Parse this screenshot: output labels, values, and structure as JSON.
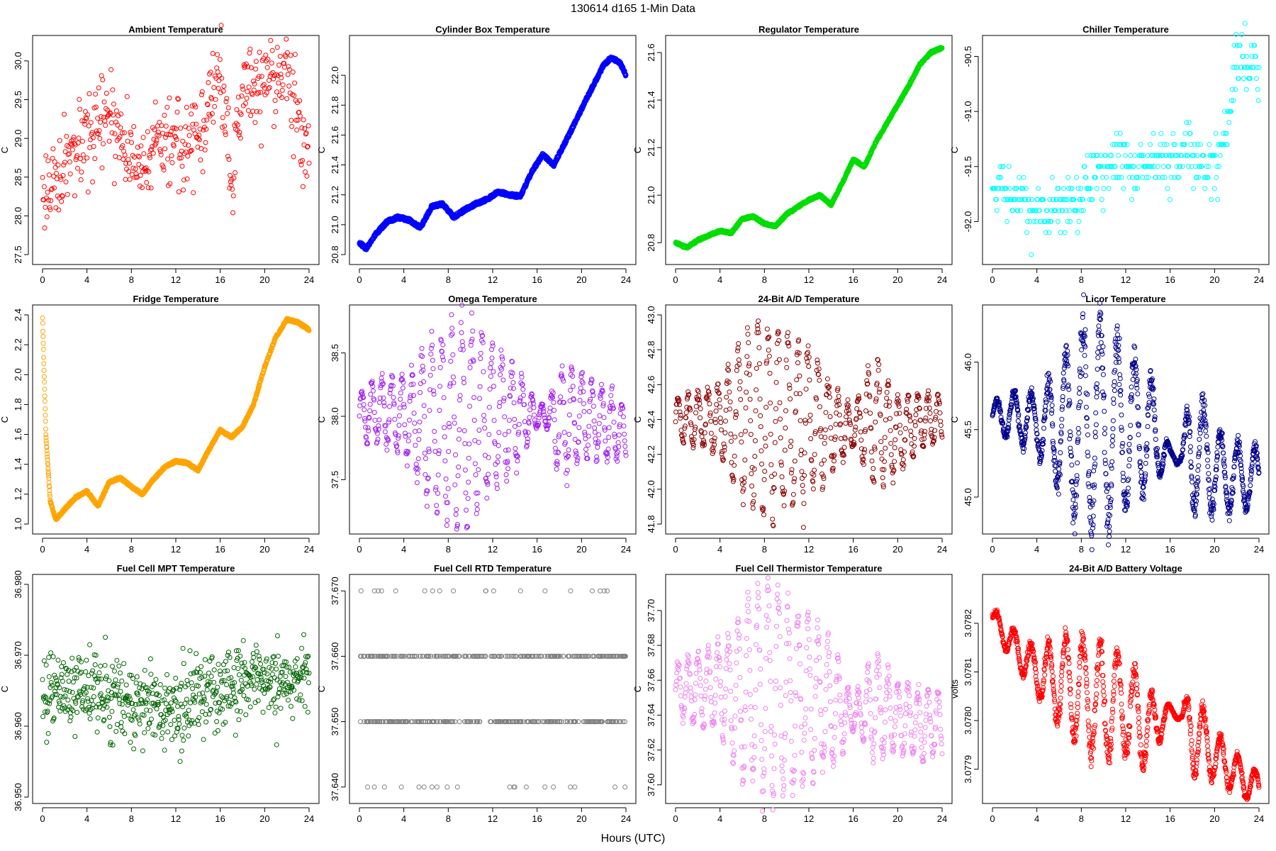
{
  "header": {
    "title": "130614   d165   1-Min Data",
    "xlabel": "Hours (UTC)"
  },
  "chart_data": [
    {
      "type": "scatter",
      "title": "Ambient Temperature",
      "ylabel": "C",
      "color": "#ff0000",
      "xlim": [
        0,
        24
      ],
      "ylim": [
        27.5,
        30.2
      ],
      "xticks": [
        0,
        4,
        8,
        12,
        16,
        20,
        24
      ],
      "yticks": [
        "27.5",
        "28.0",
        "28.5",
        "29.0",
        "29.5",
        "30.0"
      ],
      "pattern": "noisy",
      "n": 480,
      "x": [
        0,
        2,
        4,
        6,
        8,
        10,
        12,
        14,
        15.5,
        16,
        17,
        18,
        20,
        22,
        24
      ],
      "y": [
        28.3,
        28.6,
        28.9,
        29.3,
        28.7,
        28.8,
        29.0,
        29.0,
        29.6,
        29.8,
        28.5,
        29.6,
        29.7,
        29.9,
        28.8
      ],
      "spread": 0.45
    },
    {
      "type": "line",
      "title": "Cylinder Box Temperature",
      "ylabel": "C",
      "color": "#0000ff",
      "xlim": [
        0,
        24
      ],
      "ylim": [
        20.8,
        22.2
      ],
      "xticks": [
        0,
        4,
        8,
        12,
        16,
        20,
        24
      ],
      "yticks": [
        "20.8",
        "21.0",
        "21.2",
        "21.4",
        "21.6",
        "21.8",
        "22.0"
      ],
      "pattern": "line",
      "x": [
        0,
        0.6,
        1.5,
        2.5,
        3.5,
        4.5,
        5.5,
        6.5,
        7.5,
        8.5,
        9.5,
        10.5,
        11.5,
        12.5,
        13.5,
        14.5,
        15.5,
        16.5,
        17.5,
        19,
        20.5,
        22,
        22.7,
        23.5,
        24
      ],
      "y": [
        20.88,
        20.84,
        20.94,
        21.02,
        21.05,
        21.03,
        20.98,
        21.12,
        21.14,
        21.05,
        21.1,
        21.14,
        21.17,
        21.22,
        21.2,
        21.19,
        21.35,
        21.47,
        21.4,
        21.62,
        21.85,
        22.07,
        22.12,
        22.08,
        22.0
      ],
      "jitter": 0.012
    },
    {
      "type": "line",
      "title": "Regulator Temperature",
      "ylabel": "C",
      "color": "#00dd00",
      "xlim": [
        0,
        24
      ],
      "ylim": [
        20.75,
        21.63
      ],
      "xticks": [
        0,
        4,
        8,
        12,
        16,
        20,
        24
      ],
      "yticks": [
        "20.8",
        "21.0",
        "21.2",
        "21.4",
        "21.6"
      ],
      "pattern": "line",
      "x": [
        0,
        1,
        2,
        3,
        4,
        5,
        6,
        7,
        8,
        9,
        10,
        11,
        12,
        13,
        14,
        15,
        16,
        17,
        18,
        19,
        20,
        21,
        22,
        23,
        24
      ],
      "y": [
        20.8,
        20.78,
        20.81,
        20.83,
        20.85,
        20.84,
        20.9,
        20.91,
        20.88,
        20.87,
        20.92,
        20.95,
        20.98,
        21.0,
        20.96,
        21.05,
        21.15,
        21.12,
        21.22,
        21.3,
        21.38,
        21.46,
        21.55,
        21.6,
        21.62
      ],
      "jitter": 0.005
    },
    {
      "type": "scatter",
      "title": "Chiller Temperature",
      "ylabel": "C",
      "color": "#00ffff",
      "xlim": [
        0,
        24
      ],
      "ylim": [
        -92.3,
        -90.4
      ],
      "xticks": [
        0,
        4,
        8,
        12,
        16,
        20,
        24
      ],
      "yticks": [
        "-92.0",
        "-91.5",
        "-91.0",
        "-90.5"
      ],
      "pattern": "quantized",
      "n": 420,
      "step": 0.1,
      "x": [
        0,
        2,
        3.5,
        4.8,
        6,
        8,
        10,
        12,
        14,
        16,
        18,
        19.5,
        21,
        22,
        24
      ],
      "y": [
        -91.65,
        -91.8,
        -91.9,
        -91.95,
        -91.85,
        -91.7,
        -91.55,
        -91.45,
        -91.5,
        -91.45,
        -91.35,
        -91.55,
        -91.3,
        -90.6,
        -90.6
      ],
      "spread": 0.12
    },
    {
      "type": "line",
      "title": "Fridge Temperature",
      "ylabel": "C",
      "color": "#ffa500",
      "xlim": [
        0,
        24
      ],
      "ylim": [
        1.0,
        2.4
      ],
      "xticks": [
        0,
        4,
        8,
        12,
        16,
        20,
        24
      ],
      "yticks": [
        "1.0",
        "1.2",
        "1.4",
        "1.6",
        "1.8",
        "2.0",
        "2.2",
        "2.4"
      ],
      "pattern": "line",
      "x": [
        0,
        0.3,
        0.7,
        1.2,
        2,
        3,
        4,
        5,
        6,
        7,
        8,
        9,
        10,
        11,
        12,
        13,
        14,
        15,
        16,
        17,
        18,
        19,
        20,
        21,
        22,
        23,
        24
      ],
      "y": [
        2.38,
        1.6,
        1.15,
        1.03,
        1.1,
        1.18,
        1.22,
        1.12,
        1.28,
        1.31,
        1.25,
        1.2,
        1.3,
        1.38,
        1.42,
        1.41,
        1.36,
        1.5,
        1.63,
        1.58,
        1.65,
        1.8,
        2.05,
        2.25,
        2.37,
        2.35,
        2.3
      ],
      "jitter": 0.008
    },
    {
      "type": "scatter",
      "title": "Omega Temperature",
      "ylabel": "C",
      "color": "#a020f0",
      "xlim": [
        0,
        24
      ],
      "ylim": [
        37.15,
        38.8
      ],
      "xticks": [
        0,
        4,
        8,
        12,
        16,
        20,
        24
      ],
      "yticks": [
        "37.5",
        "38.0",
        "38.5"
      ],
      "pattern": "oscillation",
      "n": 620,
      "x": [
        0,
        2,
        4,
        6,
        8,
        10,
        12,
        14,
        16,
        17,
        18,
        20,
        22,
        24
      ],
      "center": [
        38.0,
        38.05,
        38.0,
        37.95,
        37.95,
        37.95,
        38.0,
        38.0,
        38.0,
        38.0,
        37.95,
        38.0,
        37.95,
        37.85
      ],
      "amp": [
        0.2,
        0.25,
        0.3,
        0.55,
        0.75,
        0.75,
        0.55,
        0.4,
        0.08,
        0.1,
        0.45,
        0.3,
        0.28,
        0.2
      ],
      "period": 0.9
    },
    {
      "type": "scatter",
      "title": "24-Bit A/D Temperature",
      "ylabel": "C",
      "color": "#8b0000",
      "xlim": [
        0,
        24
      ],
      "ylim": [
        41.8,
        43.0
      ],
      "xticks": [
        0,
        4,
        8,
        12,
        16,
        20,
        24
      ],
      "yticks": [
        "41.8",
        "42.0",
        "42.2",
        "42.4",
        "42.6",
        "42.8",
        "43.0"
      ],
      "pattern": "oscillation",
      "n": 620,
      "x": [
        0,
        2,
        4,
        6,
        8,
        10,
        12,
        14,
        16,
        18,
        20,
        22,
        24
      ],
      "center": [
        42.4,
        42.4,
        42.4,
        42.4,
        42.4,
        42.4,
        42.4,
        42.35,
        42.35,
        42.4,
        42.3,
        42.4,
        42.4
      ],
      "amp": [
        0.12,
        0.15,
        0.2,
        0.45,
        0.55,
        0.5,
        0.4,
        0.25,
        0.1,
        0.35,
        0.2,
        0.15,
        0.12
      ],
      "period": 0.9
    },
    {
      "type": "scatter",
      "title": "Licor Temperature",
      "ylabel": "C",
      "color": "#00008b",
      "xlim": [
        0,
        24
      ],
      "ylim": [
        44.8,
        46.35
      ],
      "xticks": [
        0,
        4,
        8,
        12,
        16,
        20,
        24
      ],
      "yticks": [
        "45.0",
        "45.5",
        "46.0"
      ],
      "pattern": "oscillation",
      "n": 1100,
      "x": [
        0,
        2,
        4,
        6,
        8,
        10,
        12,
        14,
        16,
        17,
        18,
        20,
        22,
        24
      ],
      "center": [
        45.6,
        45.6,
        45.55,
        45.5,
        45.55,
        45.55,
        45.5,
        45.5,
        45.3,
        45.3,
        45.4,
        45.2,
        45.15,
        45.15
      ],
      "amp": [
        0.1,
        0.18,
        0.22,
        0.45,
        0.72,
        0.78,
        0.6,
        0.45,
        0.05,
        0.05,
        0.5,
        0.3,
        0.25,
        0.2
      ],
      "period": 1.55
    },
    {
      "type": "scatter",
      "title": "Fuel Cell MPT Temperature",
      "ylabel": "C",
      "color": "#006400",
      "xlim": [
        0,
        24
      ],
      "ylim": [
        36.9505,
        36.98
      ],
      "xticks": [
        0,
        4,
        8,
        12,
        16,
        20,
        24
      ],
      "yticks": [
        "36.950",
        "36.960",
        "36.970",
        "36.980"
      ],
      "pattern": "noisy",
      "n": 650,
      "x": [
        0,
        4,
        8,
        12,
        16,
        20,
        24
      ],
      "y": [
        36.965,
        36.965,
        36.963,
        36.963,
        36.965,
        36.967,
        36.967
      ],
      "spread": 0.0045
    },
    {
      "type": "scatter",
      "title": "Fuel Cell RTD Temperature",
      "ylabel": "C",
      "color": "#808080",
      "xlim": [
        0,
        24
      ],
      "ylim": [
        37.639,
        37.671
      ],
      "xticks": [
        0,
        4,
        8,
        12,
        16,
        20,
        24
      ],
      "yticks": [
        "37.640",
        "37.650",
        "37.660",
        "37.670"
      ],
      "pattern": "levels",
      "n": 520,
      "levels": [
        37.64,
        37.65,
        37.66,
        37.67
      ],
      "weights": [
        0.03,
        0.47,
        0.46,
        0.04
      ]
    },
    {
      "type": "scatter",
      "title": "Fuel Cell Thermistor Temperature",
      "ylabel": "C",
      "color": "#ee82ee",
      "xlim": [
        0,
        24
      ],
      "ylim": [
        37.595,
        37.715
      ],
      "xticks": [
        0,
        4,
        8,
        12,
        16,
        20,
        24
      ],
      "yticks": [
        "37.60",
        "37.62",
        "37.64",
        "37.66",
        "37.68",
        "37.70"
      ],
      "pattern": "oscillation",
      "n": 650,
      "x": [
        0,
        2,
        4,
        6,
        8,
        10,
        12,
        14,
        16,
        18,
        20,
        22,
        24
      ],
      "center": [
        37.655,
        37.655,
        37.655,
        37.65,
        37.655,
        37.65,
        37.65,
        37.645,
        37.64,
        37.645,
        37.64,
        37.635,
        37.635
      ],
      "amp": [
        0.015,
        0.02,
        0.025,
        0.045,
        0.058,
        0.055,
        0.045,
        0.035,
        0.008,
        0.03,
        0.02,
        0.02,
        0.018
      ],
      "period": 0.9
    },
    {
      "type": "scatter",
      "title": "24-Bit A/D Battery Voltage",
      "ylabel": "volts",
      "color": "#ff0000",
      "xlim": [
        0,
        24
      ],
      "ylim": [
        3.07785,
        3.07828
      ],
      "xticks": [
        0,
        4,
        8,
        12,
        16,
        20,
        24
      ],
      "yticks": [
        "3.0779",
        "3.0780",
        "3.0781",
        "3.0782"
      ],
      "pattern": "oscillation",
      "n": 1100,
      "x": [
        0,
        2,
        4,
        6,
        8,
        10,
        12,
        14,
        16,
        17,
        18,
        20,
        22,
        24
      ],
      "center": [
        3.07821,
        3.07815,
        3.0781,
        3.07808,
        3.07806,
        3.07804,
        3.07803,
        3.07798,
        3.07802,
        3.07801,
        3.07798,
        3.07793,
        3.07789,
        3.07786
      ],
      "amp": [
        2e-05,
        3.5e-05,
        4.5e-05,
        9e-05,
        0.00011,
        0.000115,
        0.0001,
        8e-05,
        1e-05,
        1e-05,
        9e-05,
        5e-05,
        4e-05,
        3e-05
      ],
      "period": 1.55
    }
  ]
}
